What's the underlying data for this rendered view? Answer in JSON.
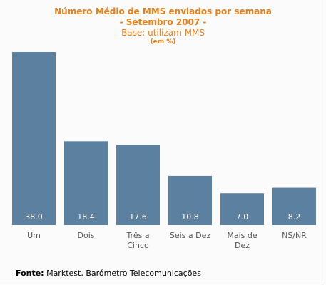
{
  "chart_data": {
    "type": "bar",
    "title": "Número Médio de MMS enviados por semana",
    "subtitle": "- Setembro 2007 -",
    "base_note": "Base: utilizam MMS",
    "unit_note": "(em %)",
    "categories": [
      [
        "Um"
      ],
      [
        "Dois"
      ],
      [
        "Três a",
        "Cinco"
      ],
      [
        "Seis a Dez"
      ],
      [
        "Mais de",
        "Dez"
      ],
      [
        "NS/NR"
      ]
    ],
    "values": [
      38.0,
      18.4,
      17.6,
      10.8,
      7.0,
      8.2
    ],
    "value_labels": [
      "38.0",
      "18.4",
      "17.6",
      "10.8",
      "7.0",
      "8.2"
    ],
    "ylim": [
      0,
      38.0
    ],
    "grid": false,
    "colors": {
      "bar": "#5b80a0",
      "value_label": "#ffffff",
      "category_label": "#555555",
      "title": "#e8801a"
    }
  },
  "source": {
    "label": "Fonte:",
    "text": "Marktest, Barómetro Telecomunicações"
  }
}
